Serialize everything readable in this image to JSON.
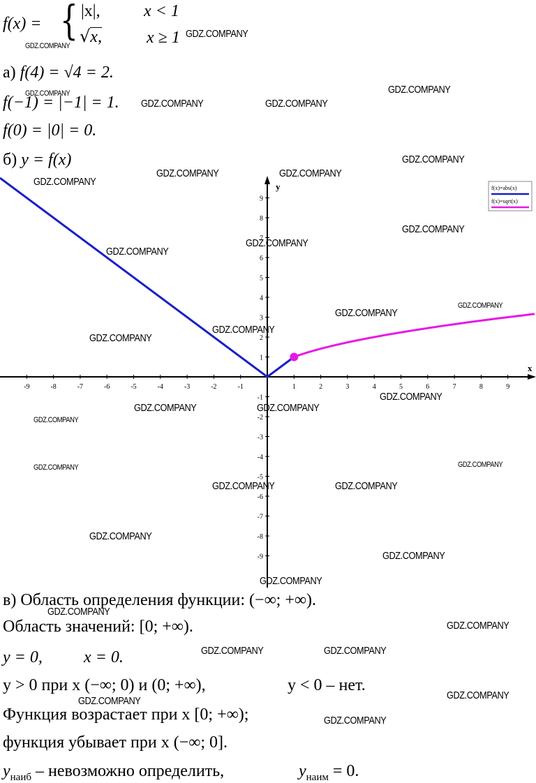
{
  "definition": {
    "lhs": "f(x) =",
    "case1_expr": "|x|,",
    "case1_cond": "x < 1",
    "case2_expr_radicand": "x,",
    "case2_cond": "x ≥ 1"
  },
  "part_a": {
    "label": "а)",
    "line1": "f(4) = √4 = 2.",
    "line2": "f(−1) = |−1| = 1.",
    "line3": "f(0) = |0| = 0."
  },
  "part_b": {
    "label": "б)",
    "text": "y = f(x)"
  },
  "chart_data": {
    "type": "line",
    "xlabel": "x",
    "ylabel": "y",
    "xlim": [
      -10,
      10
    ],
    "ylim": [
      -10,
      10
    ],
    "xticks": [
      -9,
      -8,
      -7,
      -6,
      -5,
      -4,
      -3,
      -2,
      -1,
      1,
      2,
      3,
      4,
      5,
      6,
      7,
      8,
      9
    ],
    "yticks": [
      -9,
      -8,
      -7,
      -6,
      -5,
      -4,
      -3,
      -2,
      -1,
      1,
      2,
      3,
      4,
      5,
      6,
      7,
      8,
      9
    ],
    "series": [
      {
        "name": "f(x)=abs(x)",
        "color": "#1a1fc8",
        "x": [
          -10,
          0,
          1
        ],
        "y": [
          10,
          0,
          1
        ]
      },
      {
        "name": "f(x)=sqrt(x)",
        "color": "#e619e6",
        "x": [
          1,
          2,
          3,
          4,
          5,
          6,
          7,
          8,
          9,
          10
        ],
        "y": [
          1,
          1.41,
          1.73,
          2,
          2.24,
          2.45,
          2.65,
          2.83,
          3,
          3.16
        ]
      }
    ],
    "points": [
      {
        "x": 1,
        "y": 1,
        "color": "#e619e6"
      }
    ],
    "legend": "top-right"
  },
  "part_c": {
    "line1": "в) Область определения функции: (−∞; +∞).",
    "line2": "Область значений: [0; +∞).",
    "line3_a": "y = 0,",
    "line3_b": "x = 0.",
    "line4_a": "y > 0 при x (−∞; 0) и (0; +∞),",
    "line4_b": "y < 0 – нет.",
    "line5": "Функция возрастает при x [0; +∞);",
    "line6": "функция убывает при x (−∞; 0].",
    "line7_a_var": "y",
    "line7_a_sub": "наиб",
    "line7_a_rest": " – невозможно определить,",
    "line7_b_var": "y",
    "line7_b_sub": "наим",
    "line7_b_rest": " = 0."
  },
  "watermark": "GDZ.COMPANY"
}
